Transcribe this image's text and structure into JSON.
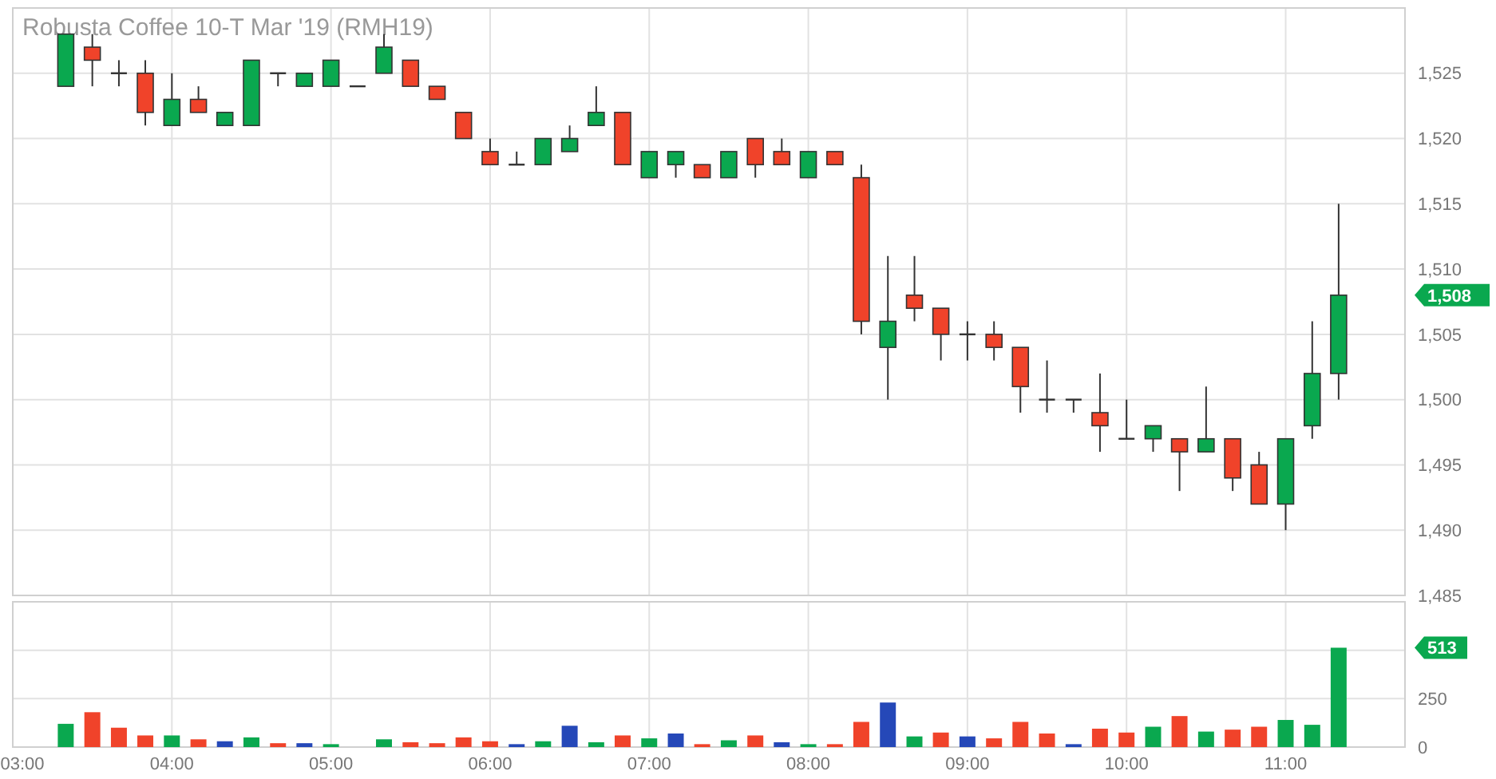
{
  "chart_data": [
    {
      "type": "candlestick",
      "title": "Robusta Coffee 10-T Mar '19 (RMH19)",
      "x": [
        3.333,
        3.5,
        3.667,
        3.833,
        4,
        4.167,
        4.333,
        4.5,
        4.667,
        4.833,
        5,
        5.167,
        5.333,
        5.5,
        5.667,
        5.833,
        6,
        6.167,
        6.333,
        6.5,
        6.667,
        6.833,
        7,
        7.167,
        7.333,
        7.5,
        7.667,
        7.833,
        8,
        8.167,
        8.333,
        8.5,
        8.667,
        8.833,
        9,
        9.167,
        9.333,
        9.5,
        9.667,
        9.833,
        10,
        10.167,
        10.333,
        10.5,
        10.667,
        10.833,
        11,
        11.167,
        11.333
      ],
      "ohlc": [
        [
          1524,
          1528,
          1524,
          1528
        ],
        [
          1527,
          1528,
          1524,
          1526
        ],
        [
          1525,
          1526,
          1524,
          1525
        ],
        [
          1525,
          1526,
          1521,
          1522
        ],
        [
          1521,
          1525,
          1521,
          1523
        ],
        [
          1523,
          1524,
          1522,
          1522
        ],
        [
          1521,
          1522,
          1521,
          1522
        ],
        [
          1521,
          1526,
          1521,
          1526
        ],
        [
          1525,
          1525,
          1524,
          1525
        ],
        [
          1524,
          1525,
          1524,
          1525
        ],
        [
          1524,
          1526,
          1524,
          1526
        ],
        [
          1524,
          1524,
          1524,
          1524
        ],
        [
          1525,
          1528,
          1525,
          1527
        ],
        [
          1526,
          1526,
          1524,
          1524
        ],
        [
          1524,
          1524,
          1523,
          1523
        ],
        [
          1522,
          1522,
          1520,
          1520
        ],
        [
          1519,
          1520,
          1518,
          1518
        ],
        [
          1518,
          1519,
          1518,
          1518
        ],
        [
          1518,
          1520,
          1518,
          1520
        ],
        [
          1519,
          1521,
          1519,
          1520
        ],
        [
          1521,
          1524,
          1521,
          1522
        ],
        [
          1522,
          1522,
          1518,
          1518
        ],
        [
          1517,
          1519,
          1517,
          1519
        ],
        [
          1518,
          1519,
          1517,
          1519
        ],
        [
          1518,
          1518,
          1517,
          1517
        ],
        [
          1517,
          1519,
          1517,
          1519
        ],
        [
          1520,
          1520,
          1517,
          1518
        ],
        [
          1519,
          1520,
          1518,
          1518
        ],
        [
          1517,
          1519,
          1517,
          1519
        ],
        [
          1519,
          1519,
          1518,
          1518
        ],
        [
          1517,
          1518,
          1505,
          1506
        ],
        [
          1504,
          1511,
          1500,
          1506
        ],
        [
          1508,
          1511,
          1506,
          1507
        ],
        [
          1507,
          1507,
          1503,
          1505
        ],
        [
          1505,
          1506,
          1503,
          1505
        ],
        [
          1505,
          1506,
          1503,
          1504
        ],
        [
          1504,
          1504,
          1499,
          1501
        ],
        [
          1500,
          1503,
          1499,
          1500
        ],
        [
          1500,
          1500,
          1499,
          1500
        ],
        [
          1499,
          1502,
          1496,
          1498
        ],
        [
          1497,
          1500,
          1497,
          1497
        ],
        [
          1497,
          1498,
          1496,
          1498
        ],
        [
          1497,
          1497,
          1493,
          1496
        ],
        [
          1496,
          1501,
          1496,
          1497
        ],
        [
          1497,
          1497,
          1493,
          1494
        ],
        [
          1495,
          1496,
          1492,
          1492
        ],
        [
          1492,
          1497,
          1490,
          1497
        ],
        [
          1498,
          1506,
          1497,
          1502
        ],
        [
          1502,
          1515,
          1500,
          1508
        ]
      ],
      "colors": [
        "#0aa84f",
        "#f0432a",
        "#333333",
        "#f0432a",
        "#0aa84f",
        "#f0432a",
        "#0aa84f",
        "#0aa84f",
        "#333333",
        "#0aa84f",
        "#0aa84f",
        "#333333",
        "#0aa84f",
        "#f0432a",
        "#f0432a",
        "#f0432a",
        "#f0432a",
        "#333333",
        "#0aa84f",
        "#0aa84f",
        "#0aa84f",
        "#f0432a",
        "#0aa84f",
        "#0aa84f",
        "#f0432a",
        "#0aa84f",
        "#f0432a",
        "#f0432a",
        "#0aa84f",
        "#f0432a",
        "#f0432a",
        "#0aa84f",
        "#f0432a",
        "#f0432a",
        "#333333",
        "#f0432a",
        "#f0432a",
        "#333333",
        "#333333",
        "#f0432a",
        "#333333",
        "#0aa84f",
        "#f0432a",
        "#0aa84f",
        "#f0432a",
        "#f0432a",
        "#0aa84f",
        "#0aa84f",
        "#0aa84f"
      ],
      "xlim": [
        3,
        11.75
      ],
      "xticks": [
        {
          "value": 3,
          "label": null
        },
        {
          "value": 4,
          "label": null
        },
        {
          "value": 5,
          "label": null
        },
        {
          "value": 6,
          "label": null
        },
        {
          "value": 7,
          "label": null
        },
        {
          "value": 8,
          "label": null
        },
        {
          "value": 9,
          "label": null
        },
        {
          "value": 10,
          "label": null
        },
        {
          "value": 11,
          "label": null
        }
      ],
      "ylim": [
        1485,
        1530
      ],
      "yticks": [
        {
          "value": 1485,
          "label": "1,485"
        },
        {
          "value": 1490,
          "label": "1,490"
        },
        {
          "value": 1495,
          "label": "1,495"
        },
        {
          "value": 1500,
          "label": "1,500"
        },
        {
          "value": 1505,
          "label": "1,505"
        },
        {
          "value": 1510,
          "label": "1,510"
        },
        {
          "value": 1515,
          "label": "1,515"
        },
        {
          "value": 1520,
          "label": "1,520"
        },
        {
          "value": 1525,
          "label": "1,525"
        }
      ],
      "grid": true,
      "tick_labels": "y",
      "annotations": [
        "1,508"
      ]
    },
    {
      "type": "bar",
      "x": [
        3.333,
        3.5,
        3.667,
        3.833,
        4,
        4.167,
        4.333,
        4.5,
        4.667,
        4.833,
        5,
        5.167,
        5.333,
        5.5,
        5.667,
        5.833,
        6,
        6.167,
        6.333,
        6.5,
        6.667,
        6.833,
        7,
        7.167,
        7.333,
        7.5,
        7.667,
        7.833,
        8,
        8.167,
        8.333,
        8.5,
        8.667,
        8.833,
        9,
        9.167,
        9.333,
        9.5,
        9.667,
        9.833,
        10,
        10.167,
        10.333,
        10.5,
        10.667,
        10.833,
        11,
        11.167,
        11.333
      ],
      "values": [
        120,
        180,
        100,
        60,
        60,
        40,
        30,
        50,
        20,
        20,
        15,
        0,
        40,
        25,
        20,
        50,
        30,
        15,
        30,
        110,
        25,
        60,
        45,
        70,
        15,
        35,
        60,
        25,
        15,
        15,
        130,
        230,
        55,
        75,
        55,
        45,
        130,
        70,
        15,
        95,
        75,
        105,
        160,
        80,
        90,
        105,
        140,
        115,
        513
      ],
      "colors": [
        "#0aa84f",
        "#f0432a",
        "#f0432a",
        "#f0432a",
        "#0aa84f",
        "#f0432a",
        "#2548b8",
        "#0aa84f",
        "#f0432a",
        "#2548b8",
        "#0aa84f",
        "#0aa84f",
        "#0aa84f",
        "#f0432a",
        "#f0432a",
        "#f0432a",
        "#f0432a",
        "#2548b8",
        "#0aa84f",
        "#2548b8",
        "#0aa84f",
        "#f0432a",
        "#0aa84f",
        "#2548b8",
        "#f0432a",
        "#0aa84f",
        "#f0432a",
        "#2548b8",
        "#0aa84f",
        "#f0432a",
        "#f0432a",
        "#2548b8",
        "#0aa84f",
        "#f0432a",
        "#2548b8",
        "#f0432a",
        "#f0432a",
        "#f0432a",
        "#2548b8",
        "#f0432a",
        "#f0432a",
        "#0aa84f",
        "#f0432a",
        "#0aa84f",
        "#f0432a",
        "#f0432a",
        "#0aa84f",
        "#0aa84f",
        "#0aa84f"
      ],
      "xlim": [
        3,
        11.75
      ],
      "xticks": [
        {
          "value": 3,
          "label": "03:00"
        },
        {
          "value": 4,
          "label": "04:00"
        },
        {
          "value": 5,
          "label": "05:00"
        },
        {
          "value": 6,
          "label": "06:00"
        },
        {
          "value": 7,
          "label": "07:00"
        },
        {
          "value": 8,
          "label": "08:00"
        },
        {
          "value": 9,
          "label": "09:00"
        },
        {
          "value": 10,
          "label": "10:00"
        },
        {
          "value": 11,
          "label": "11:00"
        }
      ],
      "ylim": [
        0,
        750
      ],
      "yticks": [
        0,
        250,
        {
          "value": 500,
          "label": null
        }
      ],
      "grid": true,
      "annotations": [
        "513"
      ]
    }
  ]
}
